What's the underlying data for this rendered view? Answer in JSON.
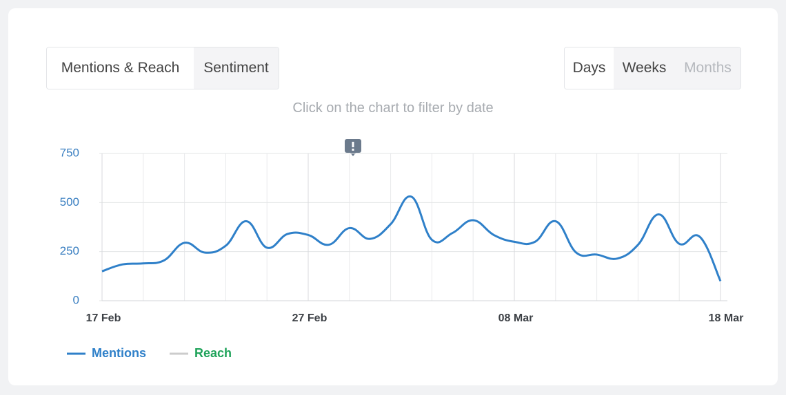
{
  "tabs": [
    "Mentions & Reach",
    "Sentiment"
  ],
  "periods": [
    "Days",
    "Weeks",
    "Months"
  ],
  "hint": "Click on the chart to filter by date",
  "chart_data": {
    "type": "line",
    "categories": [
      "17 Feb",
      null,
      null,
      null,
      null,
      null,
      null,
      null,
      null,
      null,
      "27 Feb",
      null,
      null,
      null,
      null,
      null,
      null,
      null,
      null,
      null,
      "08 Mar",
      null,
      null,
      null,
      null,
      null,
      null,
      null,
      null,
      null,
      "18 Mar"
    ],
    "series": [
      {
        "name": "Mentions",
        "color": "#2f80c9",
        "values": [
          150,
          185,
          190,
          205,
          295,
          245,
          280,
          405,
          270,
          340,
          335,
          285,
          370,
          315,
          390,
          530,
          310,
          345,
          410,
          335,
          300,
          300,
          405,
          245,
          235,
          215,
          285,
          440,
          290,
          325,
          100
        ]
      }
    ],
    "legend": [
      {
        "name": "Mentions",
        "color": "#2f80c9",
        "text_color": "#2f80c9"
      },
      {
        "name": "Reach",
        "color": "#cccccc",
        "text_color": "#1fa35a"
      }
    ],
    "ylim": [
      0,
      750
    ],
    "yticks": [
      0,
      250,
      500,
      750
    ],
    "grid": true
  }
}
